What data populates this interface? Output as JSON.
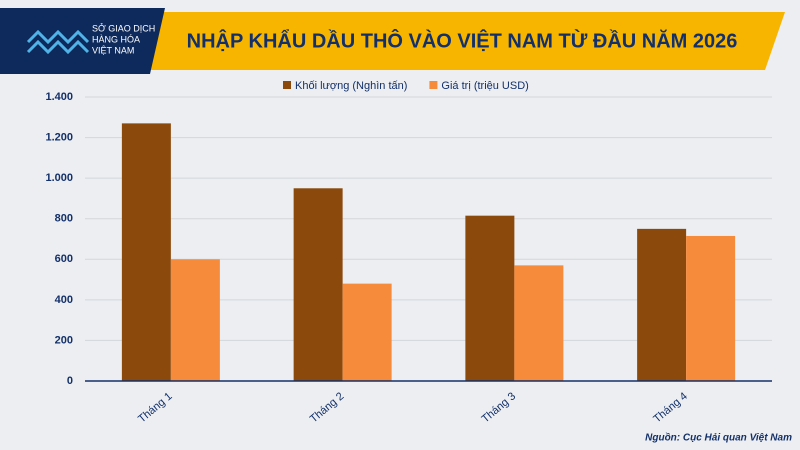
{
  "logo": {
    "lines": [
      "SỞ GIAO DỊCH",
      "HÀNG HÓA",
      "VIỆT NAM"
    ]
  },
  "chart_data": {
    "type": "bar",
    "title": "NHẬP KHẨU DẦU THÔ VÀO VIỆT NAM TỪ ĐẦU NĂM 2026",
    "categories": [
      "Tháng 1",
      "Tháng 2",
      "Tháng 3",
      "Tháng 4"
    ],
    "series": [
      {
        "name": "Khối lượng (Nghìn tấn)",
        "color": "#8b4a0c",
        "values": [
          1270,
          950,
          815,
          750
        ]
      },
      {
        "name": "Giá trị (triệu USD)",
        "color": "#f68b3c",
        "values": [
          600,
          480,
          570,
          715
        ]
      }
    ],
    "ylim": [
      0,
      1400
    ],
    "yticks": [
      0,
      200,
      400,
      600,
      800,
      {
        "value": 1000,
        "label": "1.000"
      },
      {
        "value": 1200,
        "label": "1.200"
      },
      {
        "value": 1400,
        "label": "1.400"
      }
    ],
    "grid": true,
    "legend": "top",
    "source": "Nguồn: Cục Hải quan Việt Nam"
  }
}
